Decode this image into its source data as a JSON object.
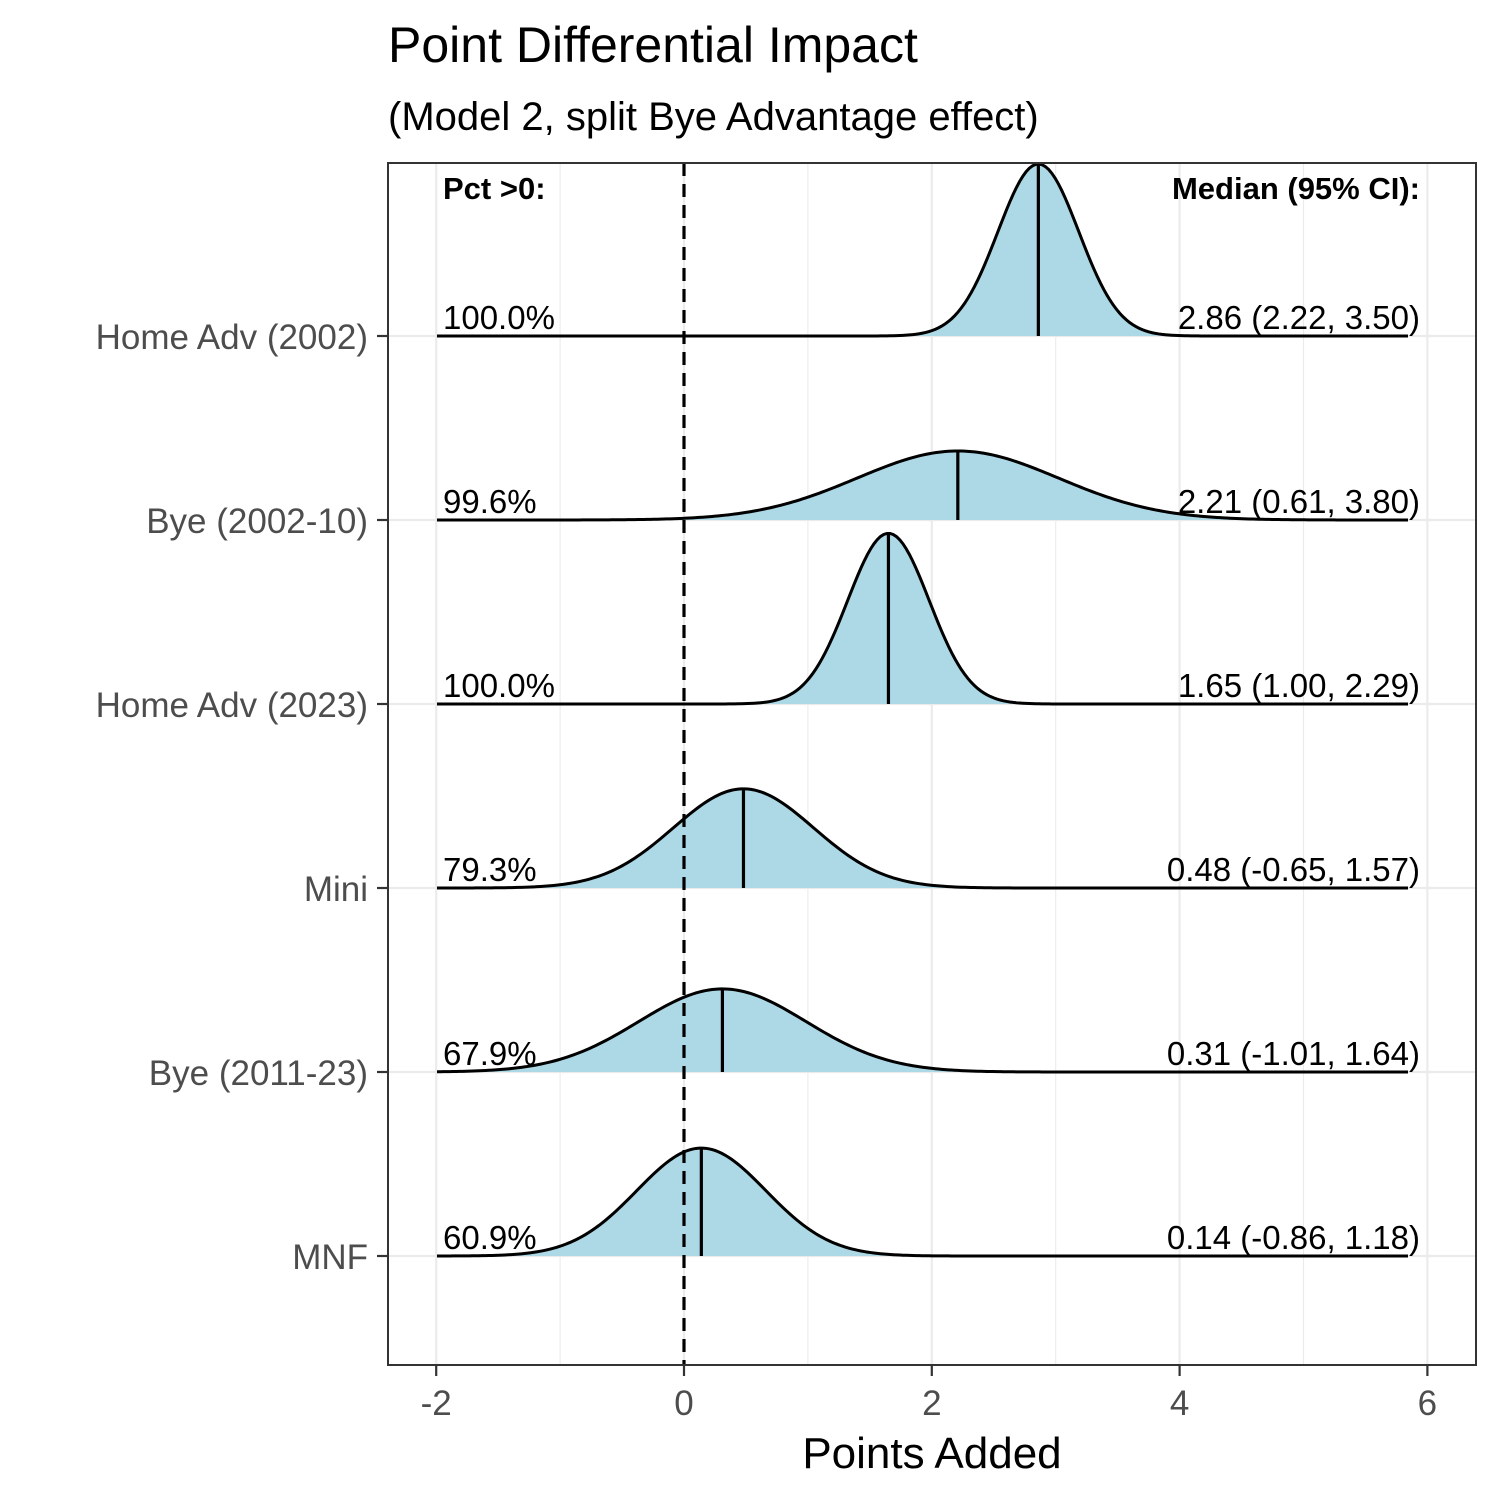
{
  "chart_data": {
    "type": "ridgeline",
    "title": "Point Differential Impact",
    "subtitle": "(Model 2, split Bye Advantage effect)",
    "xlabel": "Points Added",
    "ylabel": "",
    "xlim": [
      -2.4,
      6.4
    ],
    "x_ticks": [
      -2,
      0,
      2,
      4,
      6
    ],
    "reference_line_x": 0,
    "fill_color": "#add8e6",
    "grid": true,
    "left_header": "Pct >0:",
    "right_header": "Median (95% CI):",
    "series": [
      {
        "name": "Home Adv (2002)",
        "median": 2.86,
        "ci_low": 2.22,
        "ci_high": 3.5,
        "pct_gt_0": "100.0%",
        "median_label": "2.86 (2.22, 3.50)"
      },
      {
        "name": "Bye (2002-10)",
        "median": 2.21,
        "ci_low": 0.61,
        "ci_high": 3.8,
        "pct_gt_0": "99.6%",
        "median_label": "2.21 (0.61, 3.80)"
      },
      {
        "name": "Home Adv (2023)",
        "median": 1.65,
        "ci_low": 1.0,
        "ci_high": 2.29,
        "pct_gt_0": "100.0%",
        "median_label": "1.65 (1.00, 2.29)"
      },
      {
        "name": "Mini",
        "median": 0.48,
        "ci_low": -0.65,
        "ci_high": 1.57,
        "pct_gt_0": "79.3%",
        "median_label": "0.48 (-0.65, 1.57)"
      },
      {
        "name": "Bye (2011-23)",
        "median": 0.31,
        "ci_low": -1.01,
        "ci_high": 1.64,
        "pct_gt_0": "67.9%",
        "median_label": "0.31 (-1.01, 1.64)"
      },
      {
        "name": "MNF",
        "median": 0.14,
        "ci_low": -0.86,
        "ci_high": 1.18,
        "pct_gt_0": "60.9%",
        "median_label": "0.14 (-0.86, 1.18)"
      }
    ]
  }
}
